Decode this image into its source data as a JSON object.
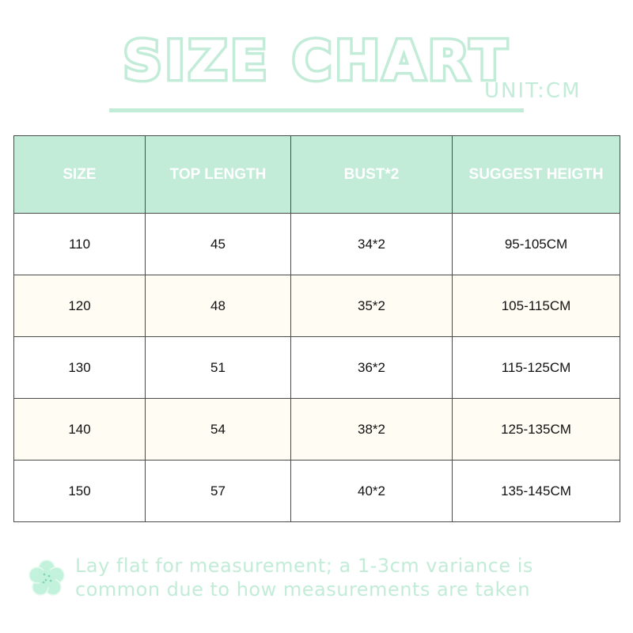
{
  "title": "SIZE CHART",
  "unit": "UNIT:CM",
  "table": {
    "headers": [
      "SIZE",
      "TOP LENGTH",
      "BUST*2",
      "SUGGEST HEIGTH"
    ],
    "rows": [
      [
        "110",
        "45",
        "34*2",
        "95-105CM"
      ],
      [
        "120",
        "48",
        "35*2",
        "105-115CM"
      ],
      [
        "130",
        "51",
        "36*2",
        "115-125CM"
      ],
      [
        "140",
        "54",
        "38*2",
        "125-135CM"
      ],
      [
        "150",
        "57",
        "40*2",
        "135-145CM"
      ]
    ]
  },
  "note": {
    "line1": "Lay flat for measurement; a 1-3cm variance is",
    "line2": "common due to how measurements are taken"
  },
  "colors": {
    "accent": "#c2ecd8",
    "alt_row": "#fffcf3",
    "border": "#4a4a4a"
  },
  "icons": {
    "note": "flower-icon"
  }
}
